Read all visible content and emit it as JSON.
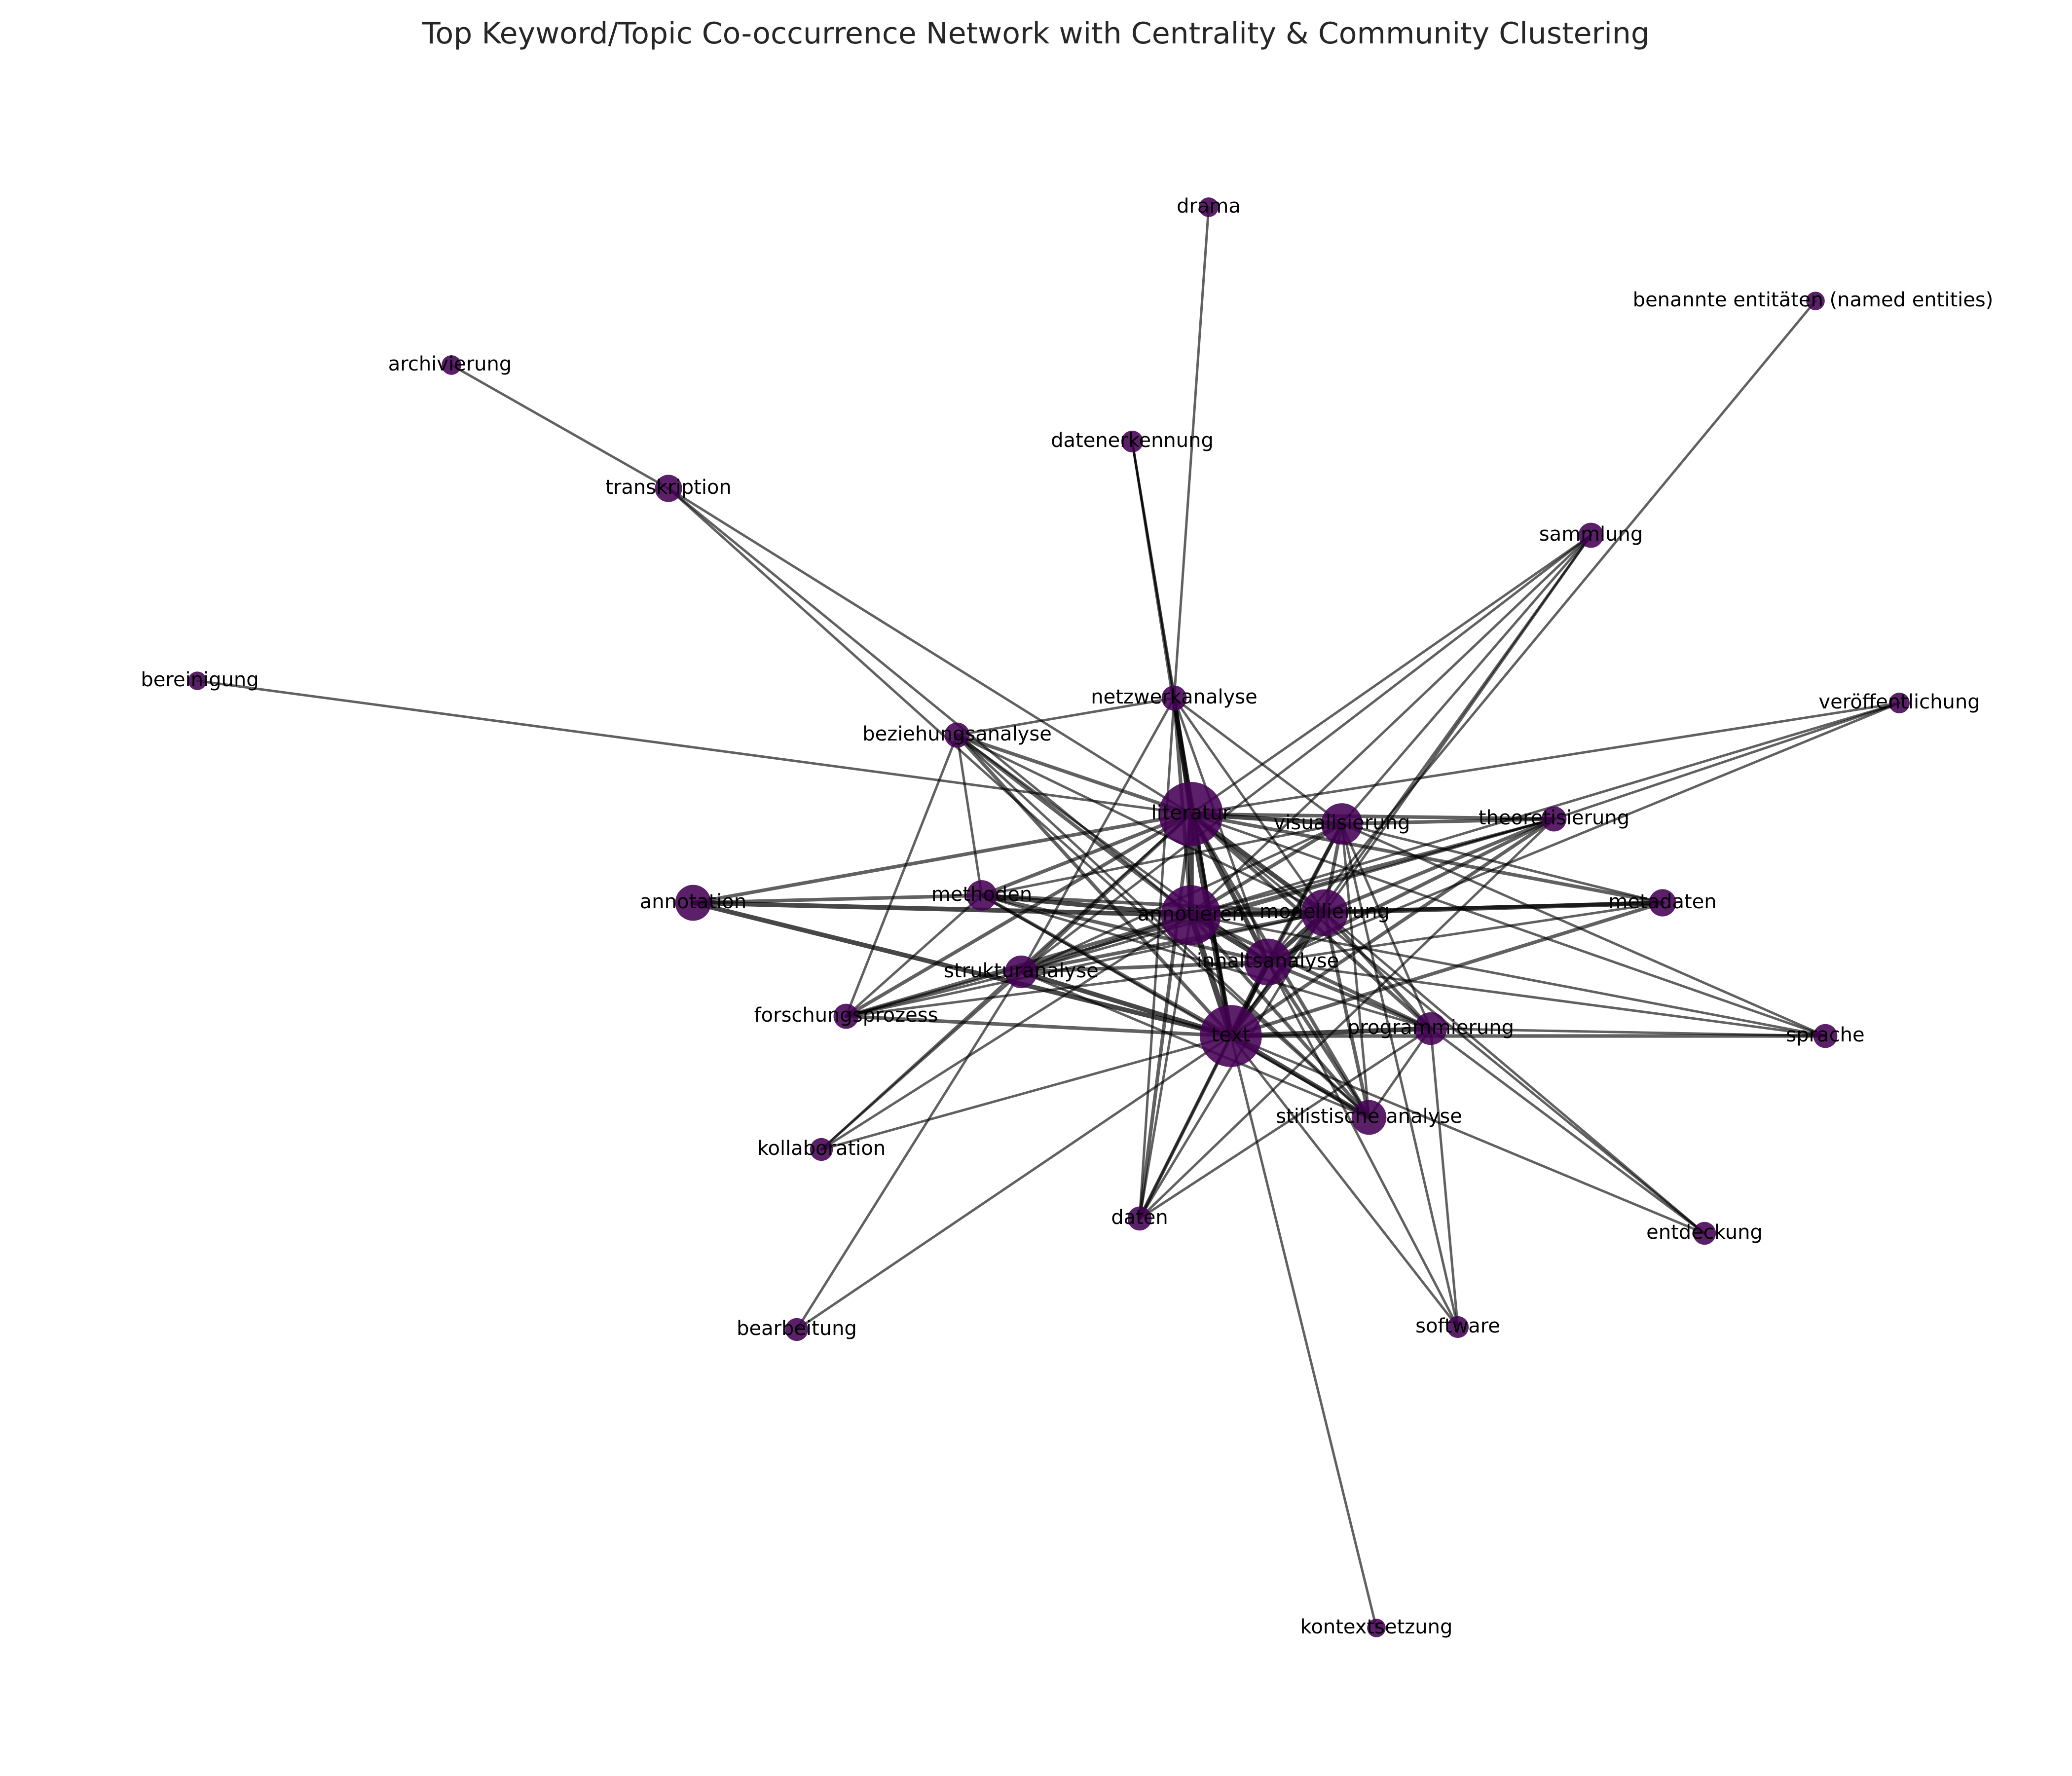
{
  "title": "Top Keyword/Topic Co-occurrence Network with Centrality & Community Clustering",
  "colors": {
    "node": "#440154",
    "edge": "#000000",
    "label": "#000000",
    "title": "#262626",
    "background": "#ffffff"
  },
  "nodes": [
    {
      "id": "literatur",
      "label": "literatur",
      "size": 5.0
    },
    {
      "id": "annotieren",
      "label": "annotieren",
      "size": 4.6
    },
    {
      "id": "text",
      "label": "text",
      "size": 4.8
    },
    {
      "id": "modellierung",
      "label": "modellierung",
      "size": 3.4
    },
    {
      "id": "inhaltsanalyse",
      "label": "inhaltsanalyse",
      "size": 3.4
    },
    {
      "id": "visualisierung",
      "label": "visualisierung",
      "size": 2.9
    },
    {
      "id": "annotation",
      "label": "annotation",
      "size": 2.4
    },
    {
      "id": "stilistische-analyse",
      "label": "stilistische analyse",
      "size": 2.3
    },
    {
      "id": "programmierung",
      "label": "programmierung",
      "size": 2.1
    },
    {
      "id": "strukturanalyse",
      "label": "strukturanalyse",
      "size": 2.1
    },
    {
      "id": "methoden",
      "label": "methoden",
      "size": 1.9
    },
    {
      "id": "transkription",
      "label": "transkription",
      "size": 1.6
    },
    {
      "id": "metadaten",
      "label": "metadaten",
      "size": 1.6
    },
    {
      "id": "beziehungsanalyse",
      "label": "beziehungsanalyse",
      "size": 1.4
    },
    {
      "id": "netzwerkanalyse",
      "label": "netzwerkanalyse",
      "size": 1.4
    },
    {
      "id": "sammlung",
      "label": "sammlung",
      "size": 1.4
    },
    {
      "id": "theoretisierung",
      "label": "theoretisierung",
      "size": 1.4
    },
    {
      "id": "forschungsprozess",
      "label": "forschungsprozess",
      "size": 1.4
    },
    {
      "id": "sprache",
      "label": "sprache",
      "size": 1.3
    },
    {
      "id": "daten",
      "label": "daten",
      "size": 1.3
    },
    {
      "id": "kollaboration",
      "label": "kollaboration",
      "size": 1.2
    },
    {
      "id": "entdeckung",
      "label": "entdeckung",
      "size": 1.2
    },
    {
      "id": "software",
      "label": "software",
      "size": 1.1
    },
    {
      "id": "bearbeitung",
      "label": "bearbeitung",
      "size": 1.2
    },
    {
      "id": "datenerkennung",
      "label": "datenerkennung",
      "size": 1.1
    },
    {
      "id": "veroeffentlichung",
      "label": "veröffentlichung",
      "size": 1.0
    },
    {
      "id": "archivierung",
      "label": "archivierung",
      "size": 0.9
    },
    {
      "id": "drama",
      "label": "drama",
      "size": 0.9
    },
    {
      "id": "benannte-entitaeten",
      "label": "benannte entitäten (named entities)",
      "size": 0.8
    },
    {
      "id": "bereinigung",
      "label": "bereinigung",
      "size": 0.8
    },
    {
      "id": "kontextsetzung",
      "label": "kontextsetzung",
      "size": 0.8
    }
  ],
  "edges": [
    [
      "literatur",
      "annotieren",
      4
    ],
    [
      "literatur",
      "text",
      4
    ],
    [
      "literatur",
      "modellierung",
      3
    ],
    [
      "literatur",
      "inhaltsanalyse",
      3
    ],
    [
      "literatur",
      "visualisierung",
      3
    ],
    [
      "literatur",
      "netzwerkanalyse",
      3
    ],
    [
      "literatur",
      "beziehungsanalyse",
      2
    ],
    [
      "literatur",
      "methoden",
      2
    ],
    [
      "literatur",
      "strukturanalyse",
      2
    ],
    [
      "literatur",
      "annotation",
      2
    ],
    [
      "literatur",
      "forschungsprozess",
      2
    ],
    [
      "literatur",
      "theoretisierung",
      2
    ],
    [
      "literatur",
      "metadaten",
      2
    ],
    [
      "literatur",
      "programmierung",
      2
    ],
    [
      "literatur",
      "sprache",
      1
    ],
    [
      "literatur",
      "veroeffentlichung",
      1
    ],
    [
      "literatur",
      "bereinigung",
      1
    ],
    [
      "literatur",
      "transkription",
      1
    ],
    [
      "literatur",
      "datenerkennung",
      1
    ],
    [
      "literatur",
      "daten",
      2
    ],
    [
      "literatur",
      "sammlung",
      1
    ],
    [
      "literatur",
      "stilistische-analyse",
      2
    ],
    [
      "literatur",
      "kollaboration",
      1
    ],
    [
      "literatur",
      "entdeckung",
      1
    ],
    [
      "annotieren",
      "text",
      4
    ],
    [
      "annotieren",
      "modellierung",
      4
    ],
    [
      "annotieren",
      "inhaltsanalyse",
      3
    ],
    [
      "annotieren",
      "visualisierung",
      2
    ],
    [
      "annotieren",
      "annotation",
      3
    ],
    [
      "annotieren",
      "methoden",
      3
    ],
    [
      "annotieren",
      "strukturanalyse",
      2
    ],
    [
      "annotieren",
      "metadaten",
      2
    ],
    [
      "annotieren",
      "beziehungsanalyse",
      2
    ],
    [
      "annotieren",
      "forschungsprozess",
      2
    ],
    [
      "annotieren",
      "stilistische-analyse",
      2
    ],
    [
      "annotieren",
      "netzwerkanalyse",
      2
    ],
    [
      "annotieren",
      "programmierung",
      2
    ],
    [
      "annotieren",
      "theoretisierung",
      1
    ],
    [
      "annotieren",
      "transkription",
      1
    ],
    [
      "annotieren",
      "sammlung",
      1
    ],
    [
      "annotieren",
      "daten",
      1
    ],
    [
      "annotieren",
      "kollaboration",
      1
    ],
    [
      "annotieren",
      "veroeffentlichung",
      1
    ],
    [
      "annotieren",
      "sprache",
      1
    ],
    [
      "text",
      "modellierung",
      3
    ],
    [
      "text",
      "inhaltsanalyse",
      4
    ],
    [
      "text",
      "visualisierung",
      2
    ],
    [
      "text",
      "annotation",
      3
    ],
    [
      "text",
      "methoden",
      2
    ],
    [
      "text",
      "strukturanalyse",
      3
    ],
    [
      "text",
      "stilistische-analyse",
      3
    ],
    [
      "text",
      "programmierung",
      3
    ],
    [
      "text",
      "sprache",
      2
    ],
    [
      "text",
      "forschungsprozess",
      2
    ],
    [
      "text",
      "netzwerkanalyse",
      2
    ],
    [
      "text",
      "beziehungsanalyse",
      2
    ],
    [
      "text",
      "metadaten",
      2
    ],
    [
      "text",
      "theoretisierung",
      2
    ],
    [
      "text",
      "daten",
      2
    ],
    [
      "text",
      "kollaboration",
      1
    ],
    [
      "text",
      "bearbeitung",
      1
    ],
    [
      "text",
      "software",
      1
    ],
    [
      "text",
      "kontextsetzung",
      1
    ],
    [
      "text",
      "datenerkennung",
      1
    ],
    [
      "text",
      "entdeckung",
      1
    ],
    [
      "text",
      "sammlung",
      1
    ],
    [
      "modellierung",
      "inhaltsanalyse",
      3
    ],
    [
      "modellierung",
      "visualisierung",
      2
    ],
    [
      "modellierung",
      "metadaten",
      3
    ],
    [
      "modellierung",
      "theoretisierung",
      2
    ],
    [
      "modellierung",
      "strukturanalyse",
      2
    ],
    [
      "modellierung",
      "methoden",
      2
    ],
    [
      "modellierung",
      "programmierung",
      2
    ],
    [
      "modellierung",
      "stilistische-analyse",
      2
    ],
    [
      "modellierung",
      "netzwerkanalyse",
      1
    ],
    [
      "modellierung",
      "beziehungsanalyse",
      1
    ],
    [
      "modellierung",
      "forschungsprozess",
      1
    ],
    [
      "modellierung",
      "daten",
      1
    ],
    [
      "modellierung",
      "sammlung",
      1
    ],
    [
      "modellierung",
      "entdeckung",
      1
    ],
    [
      "inhaltsanalyse",
      "visualisierung",
      2
    ],
    [
      "inhaltsanalyse",
      "strukturanalyse",
      2
    ],
    [
      "inhaltsanalyse",
      "methoden",
      2
    ],
    [
      "inhaltsanalyse",
      "programmierung",
      2
    ],
    [
      "inhaltsanalyse",
      "stilistische-analyse",
      2
    ],
    [
      "inhaltsanalyse",
      "theoretisierung",
      2
    ],
    [
      "inhaltsanalyse",
      "metadaten",
      1
    ],
    [
      "inhaltsanalyse",
      "forschungsprozess",
      1
    ],
    [
      "inhaltsanalyse",
      "netzwerkanalyse",
      1
    ],
    [
      "inhaltsanalyse",
      "beziehungsanalyse",
      1
    ],
    [
      "inhaltsanalyse",
      "daten",
      1
    ],
    [
      "inhaltsanalyse",
      "sprache",
      1
    ],
    [
      "inhaltsanalyse",
      "software",
      1
    ],
    [
      "inhaltsanalyse",
      "veroeffentlichung",
      1
    ],
    [
      "visualisierung",
      "theoretisierung",
      2
    ],
    [
      "visualisierung",
      "programmierung",
      1
    ],
    [
      "visualisierung",
      "strukturanalyse",
      1
    ],
    [
      "visualisierung",
      "methoden",
      1
    ],
    [
      "visualisierung",
      "stilistische-analyse",
      1
    ],
    [
      "visualisierung",
      "netzwerkanalyse",
      1
    ],
    [
      "visualisierung",
      "sammlung",
      1
    ],
    [
      "visualisierung",
      "sprache",
      1
    ],
    [
      "visualisierung",
      "metadaten",
      1
    ],
    [
      "visualisierung",
      "software",
      1
    ],
    [
      "strukturanalyse",
      "forschungsprozess",
      1
    ],
    [
      "strukturanalyse",
      "netzwerkanalyse",
      1
    ],
    [
      "strukturanalyse",
      "theoretisierung",
      1
    ],
    [
      "strukturanalyse",
      "bearbeitung",
      1
    ],
    [
      "strukturanalyse",
      "kollaboration",
      1
    ],
    [
      "strukturanalyse",
      "stilistische-analyse",
      1
    ],
    [
      "methoden",
      "beziehungsanalyse",
      1
    ],
    [
      "methoden",
      "forschungsprozess",
      1
    ],
    [
      "methoden",
      "stilistische-analyse",
      1
    ],
    [
      "methoden",
      "programmierung",
      1
    ],
    [
      "programmierung",
      "sprache",
      1
    ],
    [
      "programmierung",
      "entdeckung",
      1
    ],
    [
      "programmierung",
      "software",
      1
    ],
    [
      "programmierung",
      "stilistische-analyse",
      1
    ],
    [
      "programmierung",
      "daten",
      1
    ],
    [
      "beziehungsanalyse",
      "netzwerkanalyse",
      1
    ],
    [
      "beziehungsanalyse",
      "stilistische-analyse",
      1
    ],
    [
      "beziehungsanalyse",
      "forschungsprozess",
      1
    ],
    [
      "netzwerkanalyse",
      "daten",
      1
    ],
    [
      "netzwerkanalyse",
      "drama",
      1
    ],
    [
      "netzwerkanalyse",
      "datenerkennung",
      1
    ],
    [
      "transkription",
      "archivierung",
      1
    ],
    [
      "transkription",
      "stilistische-analyse",
      1
    ],
    [
      "sammlung",
      "strukturanalyse",
      1
    ],
    [
      "benannte-entitaeten",
      "inhaltsanalyse",
      1
    ],
    [
      "theoretisierung",
      "veroeffentlichung",
      1
    ],
    [
      "theoretisierung",
      "daten",
      1
    ],
    [
      "theoretisierung",
      "forschungsprozess",
      1
    ],
    [
      "annotation",
      "methoden",
      2
    ]
  ]
}
